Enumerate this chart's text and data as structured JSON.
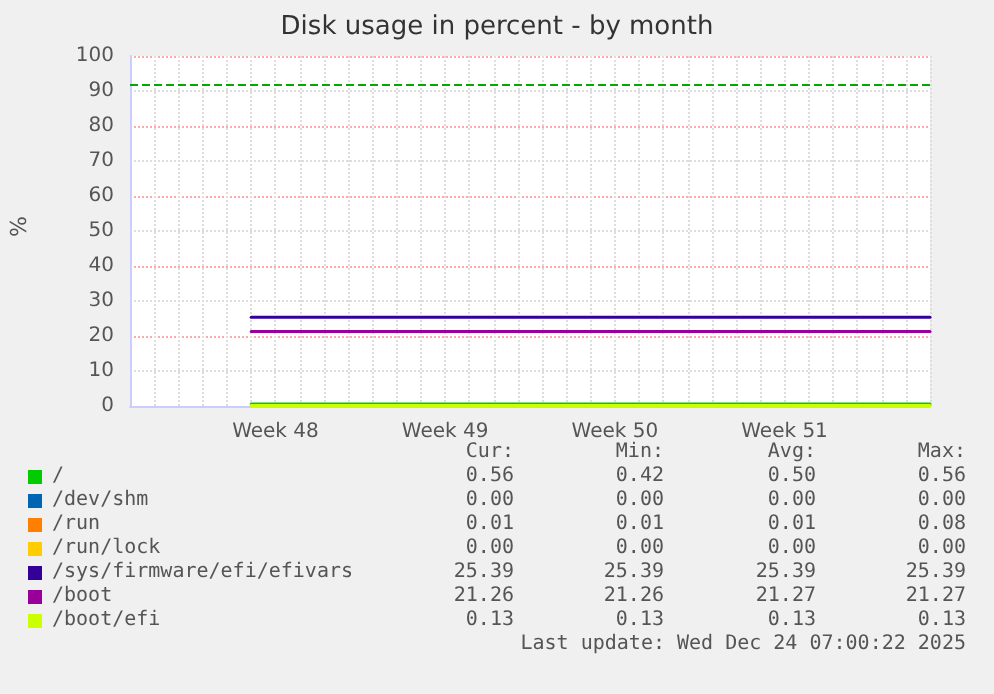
{
  "chart_data": {
    "type": "line",
    "title": "Disk usage in percent - by month",
    "ylabel": "%",
    "categories": [
      null,
      null,
      null,
      null,
      null,
      null,
      "Week 48",
      null,
      null,
      null,
      null,
      null,
      null,
      "Week 49",
      null,
      null,
      null,
      null,
      null,
      null,
      "Week 50",
      null,
      null,
      null,
      null,
      null,
      null,
      "Week 51",
      null,
      null,
      null,
      null,
      null,
      null
    ],
    "series": [
      {
        "name": "/",
        "color": "#00cc00",
        "values": [
          null,
          null,
          null,
          null,
          null,
          0.56,
          0.56,
          0.56,
          0.56,
          0.56,
          0.56,
          0.56,
          0.56,
          0.56,
          0.56,
          0.56,
          0.56,
          0.56,
          0.56,
          0.56,
          0.56,
          0.56,
          0.56,
          0.56,
          0.56,
          0.56,
          0.56,
          0.56,
          0.56,
          0.56,
          0.56,
          0.56,
          0.56,
          0.56
        ]
      },
      {
        "name": "/dev/shm",
        "color": "#0066b3",
        "values": [
          null,
          null,
          null,
          null,
          null,
          null,
          null,
          null,
          null,
          null,
          null,
          null,
          null,
          null,
          null,
          null,
          null,
          null,
          null,
          null,
          null,
          null,
          null,
          null,
          null,
          null,
          null,
          null,
          null,
          null,
          null,
          null,
          null,
          null
        ]
      },
      {
        "name": "/run",
        "color": "#ff8000",
        "values": [
          null,
          null,
          null,
          null,
          null,
          null,
          null,
          null,
          null,
          null,
          null,
          null,
          null,
          null,
          null,
          null,
          null,
          null,
          null,
          null,
          null,
          null,
          null,
          null,
          null,
          null,
          null,
          null,
          null,
          null,
          null,
          null,
          null,
          null
        ]
      },
      {
        "name": "/run/lock",
        "color": "#ffcc00",
        "values": [
          null,
          null,
          null,
          null,
          null,
          null,
          null,
          null,
          null,
          null,
          null,
          null,
          null,
          null,
          null,
          null,
          null,
          null,
          null,
          null,
          null,
          null,
          null,
          null,
          null,
          null,
          null,
          null,
          null,
          null,
          null,
          null,
          null,
          null
        ]
      },
      {
        "name": "/sys/firmware/efi/efivars",
        "color": "#330099",
        "values": [
          null,
          null,
          null,
          null,
          null,
          25.39,
          25.39,
          25.39,
          25.39,
          25.39,
          25.39,
          25.39,
          25.39,
          25.39,
          25.39,
          25.39,
          25.39,
          25.39,
          25.39,
          25.39,
          25.39,
          25.39,
          25.39,
          25.39,
          25.39,
          25.39,
          25.39,
          25.39,
          25.39,
          25.39,
          25.39,
          25.39,
          25.39,
          25.39
        ]
      },
      {
        "name": "/boot",
        "color": "#990099",
        "values": [
          null,
          null,
          null,
          null,
          null,
          21.26,
          21.26,
          21.26,
          21.26,
          21.26,
          21.26,
          21.26,
          21.26,
          21.26,
          21.26,
          21.26,
          21.26,
          21.26,
          21.26,
          21.26,
          21.26,
          21.26,
          21.26,
          21.26,
          21.26,
          21.26,
          21.26,
          21.26,
          21.26,
          21.26,
          21.26,
          21.26,
          21.26,
          21.26
        ]
      },
      {
        "name": "/boot/efi",
        "color": "#ccff00",
        "values": [
          null,
          null,
          null,
          null,
          null,
          0.13,
          0.13,
          0.13,
          0.13,
          0.13,
          0.13,
          0.13,
          0.13,
          0.13,
          0.13,
          0.13,
          0.13,
          0.13,
          0.13,
          0.13,
          0.13,
          0.13,
          0.13,
          0.13,
          0.13,
          0.13,
          0.13,
          0.13,
          0.13,
          0.13,
          0.13,
          0.13,
          0.13,
          0.13
        ]
      }
    ],
    "ylim": [
      0,
      100
    ],
    "yticks": [
      0,
      10,
      20,
      30,
      40,
      50,
      60,
      70,
      80,
      90,
      100
    ],
    "ref_lines": [
      {
        "axis": "y",
        "value": 92,
        "color": "#00aa00",
        "line_style": "dashed"
      }
    ],
    "grid": true,
    "legend": "bottom",
    "marker": "none",
    "line_style": "solid",
    "annotations": [
      "Cur:",
      "Min:",
      "Avg:",
      "Max:",
      "0.56",
      "0.42",
      "0.50",
      "0.56",
      "0.00",
      "0.00",
      "0.00",
      "0.00",
      "0.01",
      "0.01",
      "0.01",
      "0.08",
      "0.00",
      "0.00",
      "0.00",
      "0.00",
      "25.39",
      "25.39",
      "25.39",
      "25.39",
      "21.26",
      "21.26",
      "21.27",
      "21.27",
      "0.13",
      "0.13",
      "0.13",
      "0.13",
      "Last update: Wed Dec 24 07:00:22 2025"
    ]
  }
}
